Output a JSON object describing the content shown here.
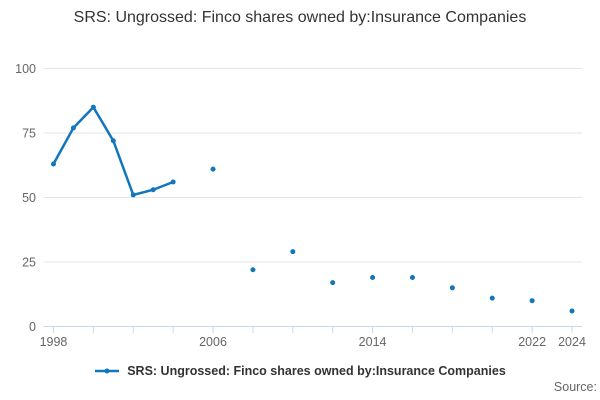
{
  "title": "SRS: Ungrossed: Finco shares owned by:Insurance Companies",
  "legend": {
    "label": "SRS: Ungrossed: Finco shares owned by:Insurance Companies"
  },
  "footer": {
    "source_label": "Source:"
  },
  "colors": {
    "series": "#1176bc",
    "grid": "#e6e6e6",
    "axis_line": "#ccd6eb",
    "axis_text": "#666666",
    "title_text": "#333333",
    "legend_text": "#333333"
  },
  "chart_data": {
    "type": "line",
    "title": "SRS: Ungrossed: Finco shares owned by:Insurance Companies",
    "xlabel": "",
    "ylabel": "",
    "x": [
      1998,
      1999,
      2000,
      2001,
      2002,
      2003,
      2004,
      2005,
      2006,
      2007,
      2008,
      2009,
      2010,
      2011,
      2012,
      2013,
      2014,
      2015,
      2016,
      2017,
      2018,
      2019,
      2020,
      2021,
      2022,
      2023,
      2024
    ],
    "series": [
      {
        "name": "SRS: Ungrossed: Finco shares owned by:Insurance Companies",
        "values": [
          63,
          77,
          85,
          72,
          51,
          53,
          56,
          null,
          61,
          null,
          22,
          null,
          29,
          null,
          17,
          null,
          19,
          null,
          19,
          null,
          15,
          null,
          11,
          null,
          10,
          null,
          6
        ]
      }
    ],
    "xlim": [
      1997.5,
      2024.5
    ],
    "ylim": [
      0,
      100
    ],
    "yticks": [
      0,
      25,
      50,
      75,
      100
    ],
    "xticks": [
      1998,
      2000,
      2002,
      2004,
      2006,
      2008,
      2010,
      2012,
      2014,
      2016,
      2018,
      2020,
      2022,
      2024
    ],
    "xtick_labels": [
      1998,
      2006,
      2014,
      2022,
      2024
    ],
    "grid": "horizontal",
    "legend_position": "bottom",
    "marker": "circle"
  }
}
